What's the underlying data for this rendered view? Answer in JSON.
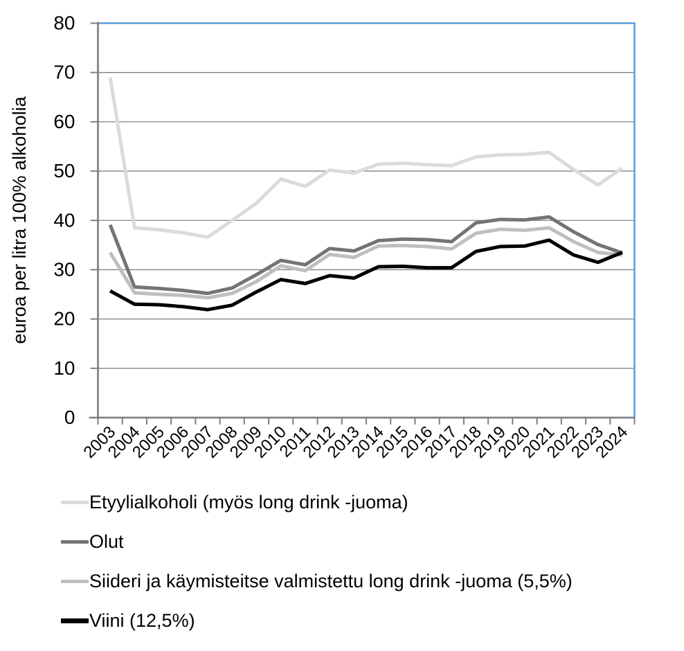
{
  "chart_data": {
    "type": "line",
    "title": "",
    "xlabel": "",
    "ylabel": "euroa per litra 100% alkoholia",
    "ylim": [
      0,
      80
    ],
    "y_ticks": [
      0,
      10,
      20,
      30,
      40,
      50,
      60,
      70,
      80
    ],
    "grid": true,
    "legend_position": "bottom-left",
    "x": [
      "2003",
      "2004",
      "2005",
      "2006",
      "2007",
      "2008",
      "2009",
      "2010",
      "2011",
      "2012",
      "2013",
      "2014",
      "2015",
      "2016",
      "2017",
      "2018",
      "2019",
      "2020",
      "2021",
      "2022",
      "2023",
      "2024"
    ],
    "series": [
      {
        "id": "etyylialkoholi",
        "name": "Etyylialkoholi (myös long drink -juoma)",
        "color": "#DBDBDB",
        "values": [
          69.0,
          38.5,
          38.1,
          37.5,
          36.6,
          40.0,
          43.5,
          48.4,
          46.9,
          50.2,
          49.6,
          51.4,
          51.6,
          51.3,
          51.1,
          52.9,
          53.3,
          53.4,
          53.8,
          50.3,
          47.2,
          50.6
        ]
      },
      {
        "id": "olut",
        "name": "Olut",
        "color": "#747474",
        "values": [
          39.1,
          26.5,
          26.2,
          25.8,
          25.2,
          26.3,
          29.0,
          31.9,
          31.0,
          34.3,
          33.8,
          35.9,
          36.2,
          36.1,
          35.7,
          39.5,
          40.2,
          40.1,
          40.7,
          37.7,
          35.1,
          33.4
        ]
      },
      {
        "id": "siideri",
        "name": "Siideri ja käymisteitse valmistettu long drink -juoma (5,5%)",
        "color": "#BFBFBF",
        "values": [
          33.5,
          25.3,
          25.0,
          24.8,
          24.3,
          25.2,
          27.6,
          30.8,
          29.8,
          33.1,
          32.5,
          34.8,
          34.9,
          34.7,
          34.2,
          37.4,
          38.2,
          38.0,
          38.5,
          35.7,
          33.5,
          33.0
        ]
      },
      {
        "id": "viini",
        "name": "Viini (12,5%)",
        "color": "#000000",
        "values": [
          25.7,
          23.0,
          22.9,
          22.5,
          21.9,
          22.8,
          25.5,
          28.0,
          27.2,
          28.8,
          28.3,
          30.6,
          30.7,
          30.4,
          30.4,
          33.7,
          34.7,
          34.8,
          36.0,
          33.0,
          31.5,
          33.5
        ]
      }
    ],
    "colors": {
      "plot_border": "#5B9BD5",
      "gridline": "#808080",
      "axis": "#808080",
      "text": "#000000"
    }
  }
}
